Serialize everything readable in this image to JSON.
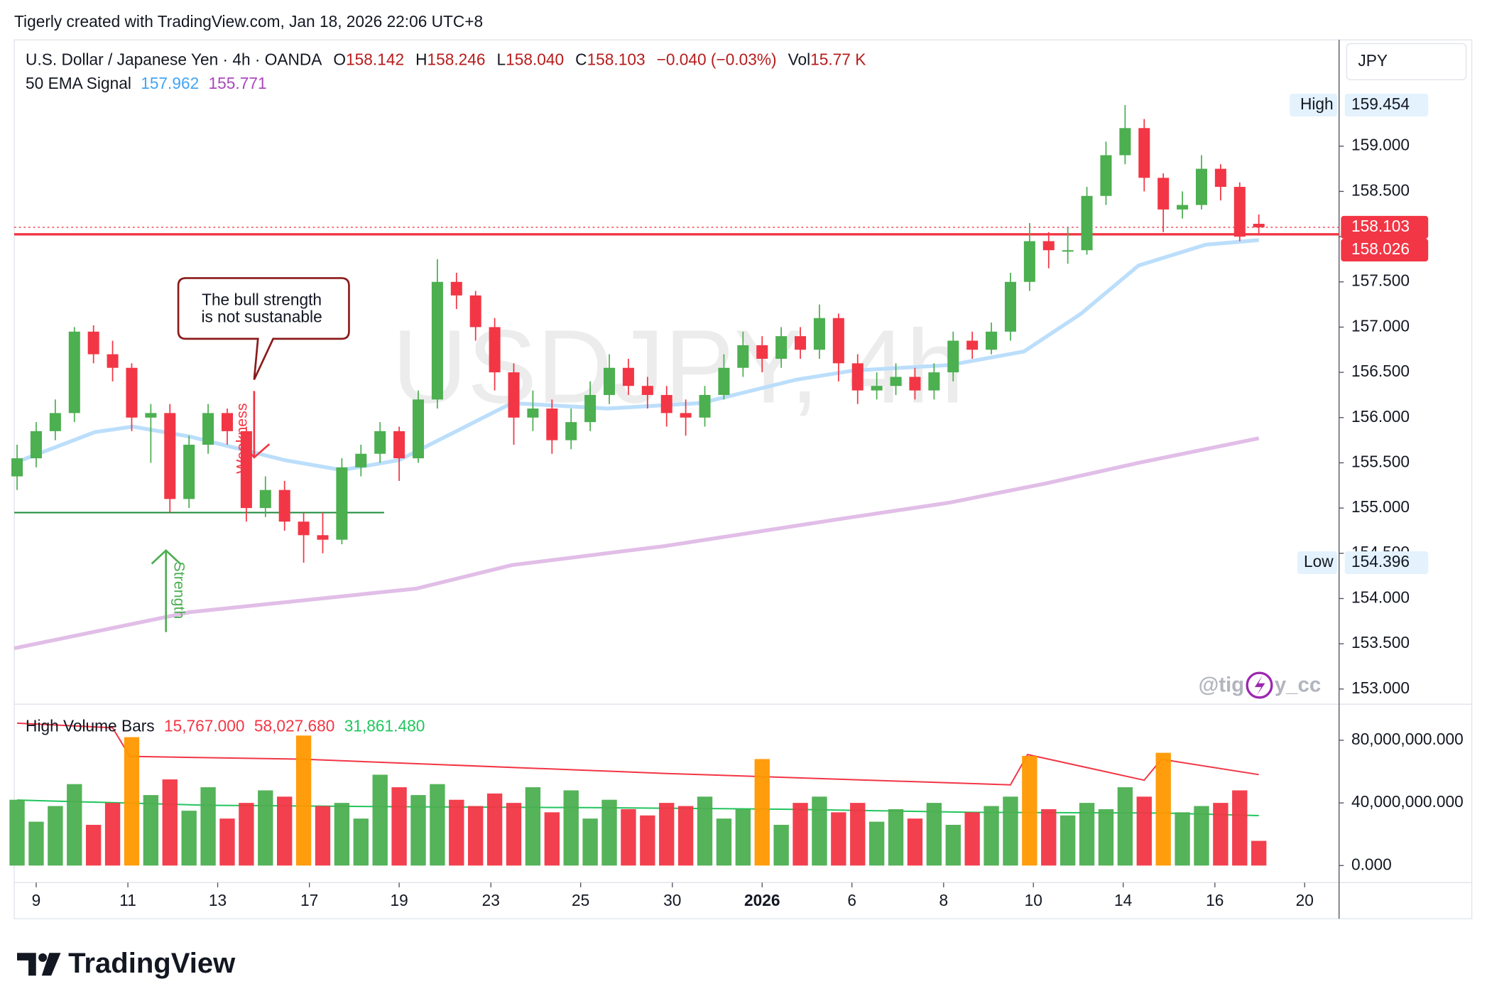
{
  "header": "Tigerly created with TradingView.com, Jan 18, 2026 22:06 UTC+8",
  "footer_brand": "TradingView",
  "chart_data": {
    "type": "candlestick",
    "legend": {
      "symbol": "U.S. Dollar / Japanese Yen · 4h · OANDA",
      "ohlc": [
        {
          "key": "O",
          "text": "158.142"
        },
        {
          "key": "H",
          "text": "158.246"
        },
        {
          "key": "L",
          "text": "158.040"
        },
        {
          "key": "C",
          "text": "158.103"
        }
      ],
      "change": "−0.040 (−0.03%)",
      "vol_key": "Vol",
      "vol": "15.77 K"
    },
    "indicator": {
      "name": "50 EMA Signal",
      "fast": "157.962",
      "slow": "155.771"
    },
    "watermark": "USDJPY, 4h",
    "currency": "JPY",
    "credit_left": "@tig",
    "credit_right": "y_cc",
    "open": [
      155.35,
      155.55,
      155.85,
      156.05,
      156.95,
      156.7,
      156.55,
      156.0,
      156.05,
      155.1,
      155.7,
      156.05,
      155.85,
      155.0,
      155.2,
      154.85,
      154.7,
      154.65,
      155.45,
      155.6,
      155.85,
      155.55,
      156.2,
      157.5,
      157.35,
      157.0,
      156.5,
      156.0,
      156.1,
      155.75,
      155.95,
      156.25,
      156.55,
      156.35,
      156.25,
      156.05,
      156.0,
      156.25,
      156.55,
      156.8,
      156.65,
      156.9,
      156.75,
      157.1,
      156.6,
      156.3,
      156.35,
      156.45,
      156.3,
      156.5,
      156.85,
      156.75,
      156.95,
      157.5,
      157.95,
      157.85,
      157.85,
      158.45,
      158.9,
      159.2,
      158.65,
      158.3,
      158.35,
      158.75,
      158.55,
      158.142
    ],
    "high": [
      155.7,
      155.95,
      156.2,
      157.0,
      157.02,
      156.85,
      156.6,
      156.15,
      156.15,
      155.8,
      156.15,
      156.1,
      155.9,
      155.35,
      155.3,
      154.95,
      154.95,
      155.55,
      155.7,
      155.95,
      155.9,
      156.3,
      157.75,
      157.6,
      157.4,
      157.1,
      156.6,
      156.3,
      156.2,
      156.1,
      156.4,
      156.7,
      156.65,
      156.45,
      156.35,
      156.2,
      156.35,
      156.7,
      156.95,
      156.9,
      157.0,
      157.0,
      157.25,
      157.15,
      156.7,
      156.5,
      156.6,
      156.55,
      156.6,
      156.95,
      156.95,
      157.05,
      157.6,
      158.15,
      158.05,
      158.1,
      158.55,
      159.05,
      159.454,
      159.3,
      158.7,
      158.5,
      158.9,
      158.8,
      158.6,
      158.246
    ],
    "low": [
      155.2,
      155.45,
      155.75,
      155.95,
      156.6,
      156.4,
      155.85,
      155.5,
      154.95,
      155.0,
      155.6,
      155.7,
      154.85,
      154.9,
      154.75,
      154.396,
      154.5,
      154.6,
      155.35,
      155.5,
      155.3,
      155.5,
      156.1,
      157.2,
      156.85,
      156.3,
      155.7,
      155.85,
      155.6,
      155.65,
      155.85,
      156.15,
      156.25,
      156.1,
      155.9,
      155.8,
      155.9,
      156.2,
      156.45,
      156.5,
      156.55,
      156.65,
      156.65,
      156.4,
      156.15,
      156.2,
      156.25,
      156.2,
      156.2,
      156.4,
      156.65,
      156.7,
      156.85,
      157.4,
      157.65,
      157.7,
      157.8,
      158.35,
      158.8,
      158.5,
      158.05,
      158.2,
      158.3,
      158.4,
      157.95,
      158.04
    ],
    "close": [
      155.55,
      155.85,
      156.05,
      156.95,
      156.7,
      156.55,
      156.0,
      156.05,
      155.1,
      155.7,
      156.05,
      155.85,
      155.0,
      155.2,
      154.85,
      154.7,
      154.65,
      155.45,
      155.6,
      155.85,
      155.55,
      156.2,
      157.5,
      157.35,
      157.0,
      156.5,
      156.0,
      156.1,
      155.75,
      155.95,
      156.25,
      156.55,
      156.35,
      156.25,
      156.05,
      156.0,
      156.25,
      156.55,
      156.8,
      156.65,
      156.9,
      156.75,
      157.1,
      156.6,
      156.3,
      156.35,
      156.45,
      156.3,
      156.5,
      156.85,
      156.75,
      156.95,
      157.5,
      157.95,
      157.85,
      157.85,
      158.45,
      158.9,
      159.2,
      158.65,
      158.3,
      158.35,
      158.75,
      158.55,
      158.0,
      158.103
    ],
    "up_color": "#4caf50",
    "down_color": "#f23645",
    "xlim": [
      -0.15,
      69.2
    ],
    "xticks": [
      {
        "value": 1.0,
        "label": "9"
      },
      {
        "value": 5.8,
        "label": "11"
      },
      {
        "value": 10.5,
        "label": "13"
      },
      {
        "value": 15.3,
        "label": "17"
      },
      {
        "value": 20.0,
        "label": "19"
      },
      {
        "value": 24.8,
        "label": "23"
      },
      {
        "value": 29.5,
        "label": "25"
      },
      {
        "value": 34.3,
        "label": "30"
      },
      {
        "value": 39.0,
        "label": "2026",
        "bold": true
      },
      {
        "value": 43.7,
        "label": "6"
      },
      {
        "value": 48.5,
        "label": "8"
      },
      {
        "value": 53.2,
        "label": "10"
      },
      {
        "value": 57.9,
        "label": "14"
      },
      {
        "value": 62.7,
        "label": "16"
      },
      {
        "value": 67.4,
        "label": "20"
      }
    ],
    "ylim": [
      152.853,
      160.175
    ],
    "yticks": [
      {
        "value": 153,
        "label": "153.000"
      },
      {
        "value": 153.5,
        "label": "153.500"
      },
      {
        "value": 154,
        "label": "154.000"
      },
      {
        "value": 154.5,
        "label": "154.500"
      },
      {
        "value": 155,
        "label": "155.000"
      },
      {
        "value": 155.5,
        "label": "155.500"
      },
      {
        "value": 156,
        "label": "156.000"
      },
      {
        "value": 156.5,
        "label": "156.500"
      },
      {
        "value": 157,
        "label": "157.000"
      },
      {
        "value": 157.5,
        "label": "157.500"
      },
      {
        "value": 158,
        "label": "158.000"
      },
      {
        "value": 158.5,
        "label": "158.500"
      },
      {
        "value": 159,
        "label": "159.000"
      }
    ],
    "lines": [
      {
        "color": "#bbdefb",
        "x": [
          0,
          4.07,
          6.06,
          9.04,
          14,
          17,
          20,
          22.9,
          25.9,
          30.9,
          35.8,
          40.8,
          43.8,
          48.8,
          52.7,
          55.7,
          58.7,
          62.2,
          65
        ],
        "values": [
          155.51,
          155.84,
          155.9,
          155.79,
          155.53,
          155.42,
          155.53,
          155.84,
          156.16,
          156.1,
          156.16,
          156.42,
          156.52,
          156.58,
          156.73,
          157.15,
          157.68,
          157.91,
          157.962
        ]
      },
      {
        "color": "#e1bee7",
        "x": [
          -0.15,
          9.04,
          20.9,
          25.9,
          33.9,
          42.8,
          48.8,
          53.8,
          58.7,
          65
        ],
        "values": [
          153.45,
          153.85,
          154.11,
          154.37,
          154.58,
          154.87,
          155.06,
          155.27,
          155.5,
          155.771
        ]
      }
    ],
    "last_price": 158.103,
    "level": 158.026,
    "high_label": {
      "name": "High",
      "value": 159.454
    },
    "low_label": {
      "name": "Low",
      "value": 154.396
    },
    "callout": [
      "The bull strength",
      "is not sustanable"
    ],
    "weakness": "Weakness",
    "strength": "Strength",
    "support": 154.95,
    "volume": {
      "title": "High Volume Bars",
      "legend_values": [
        {
          "text": "15,767.000",
          "color": "#f23645"
        },
        {
          "text": "58,027.680",
          "color": "#f23645"
        },
        {
          "text": "31,861.480",
          "color": "#22c55e"
        }
      ],
      "values": [
        42000000,
        28000000,
        38000000,
        52000000,
        26000000,
        40000000,
        82000000,
        45000000,
        55000000,
        35000000,
        50000000,
        30000000,
        40000000,
        48000000,
        44000000,
        83000000,
        38000000,
        40000000,
        30000000,
        58000000,
        50000000,
        45000000,
        52000000,
        42000000,
        38000000,
        46000000,
        40000000,
        50000000,
        34000000,
        48000000,
        30000000,
        42000000,
        36000000,
        32000000,
        40000000,
        38000000,
        44000000,
        30000000,
        36000000,
        68000000,
        26000000,
        40000000,
        44000000,
        34000000,
        40000000,
        28000000,
        36000000,
        30000000,
        40000000,
        26000000,
        34000000,
        38000000,
        44000000,
        70000000,
        36000000,
        32000000,
        40000000,
        36000000,
        50000000,
        44000000,
        72000000,
        34000000,
        38000000,
        40000000,
        48000000,
        15767000
      ],
      "highlight": [
        6,
        15,
        39,
        53,
        60
      ],
      "highlight_color": "#ff9800",
      "ylim": [
        -10900000,
        101200000
      ],
      "yticks": [
        {
          "value": 0,
          "label": "0.000"
        },
        {
          "value": 40000000,
          "label": "40,000,000.000"
        },
        {
          "value": 80000000,
          "label": "80,000,000.000"
        }
      ],
      "lines": [
        {
          "color": "#f23645",
          "x": [
            0,
            5,
            5.9,
            15,
            34,
            52,
            52.9,
            59,
            59.9,
            65
          ],
          "values": [
            90900000,
            88000000,
            69700000,
            67900000,
            58800000,
            51500000,
            70900000,
            54500000,
            67900000,
            58027680
          ]
        },
        {
          "color": "#22c55e",
          "x": [
            0,
            10,
            20,
            30,
            40,
            50,
            60,
            65
          ],
          "values": [
            41800000,
            38500000,
            37600000,
            37000000,
            36000000,
            34000000,
            33500000,
            31861480
          ]
        }
      ]
    }
  }
}
